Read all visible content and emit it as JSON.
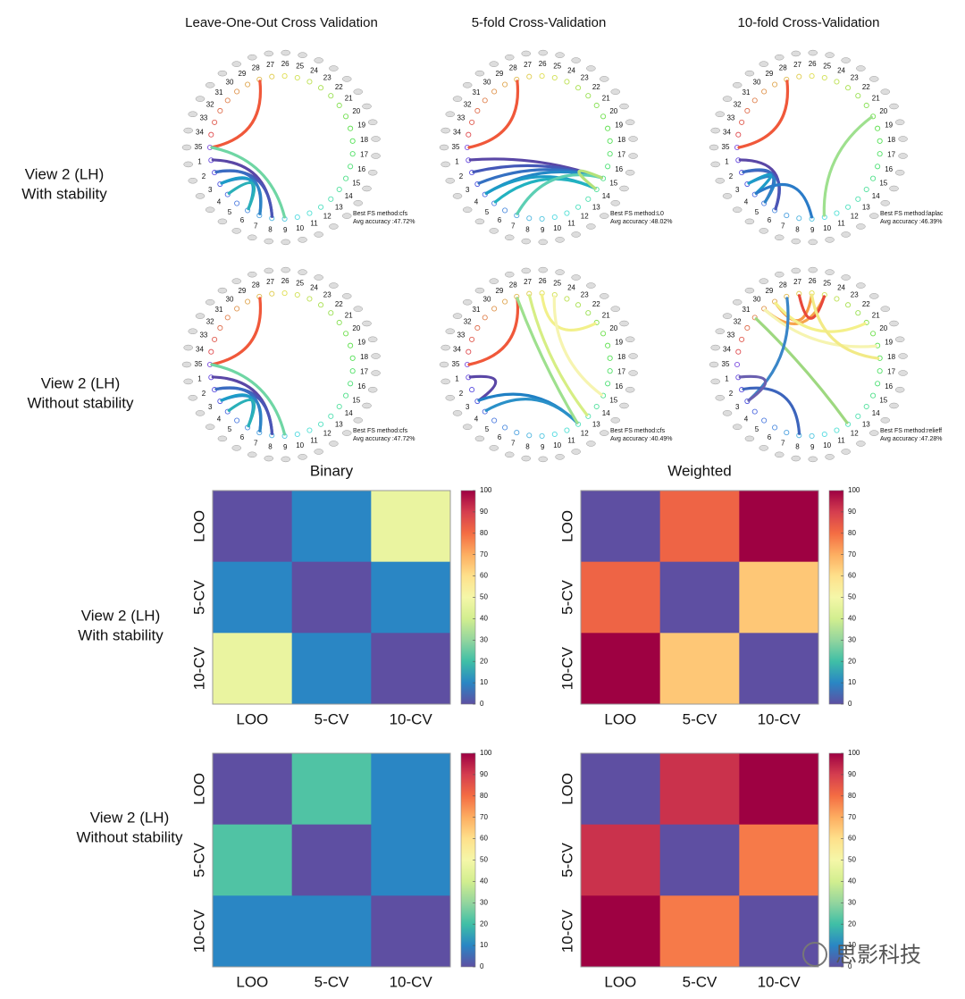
{
  "connectome": {
    "columns": [
      "Leave-One-Out Cross Validation",
      "5-fold Cross-Validation",
      "10-fold Cross-Validation"
    ],
    "row_labels": [
      [
        "View 2 (LH)",
        "With stability"
      ],
      [
        "View 2 (LH)",
        "Without stability"
      ]
    ],
    "nodes": [
      35,
      1,
      2,
      3,
      4,
      5,
      6,
      7,
      8,
      9,
      10,
      11,
      12,
      13,
      14,
      15,
      16,
      17,
      18,
      19,
      20,
      21,
      22,
      23,
      24,
      25,
      26,
      27,
      28,
      29,
      30,
      31,
      32,
      33,
      34
    ],
    "panels": [
      {
        "method": "Best FS method:cfs",
        "accuracy": "Avg accuracy :47.72%",
        "edges": [
          {
            "from": 35,
            "to": 28,
            "color": "#f0583a"
          },
          {
            "from": 35,
            "to": 9,
            "color": "#6fd6a4"
          },
          {
            "from": 1,
            "to": 8,
            "color": "#5a47a6"
          },
          {
            "from": 2,
            "to": 8,
            "color": "#4a56b6"
          },
          {
            "from": 2,
            "to": 7,
            "color": "#3a6cc2"
          },
          {
            "from": 3,
            "to": 7,
            "color": "#2d84c6"
          },
          {
            "from": 3,
            "to": 6,
            "color": "#1d9cc8"
          },
          {
            "from": 4,
            "to": 6,
            "color": "#2ab0b8"
          }
        ]
      },
      {
        "method": "Best FS method:L0",
        "accuracy": "Avg accuracy :48.02%",
        "edges": [
          {
            "from": 35,
            "to": 28,
            "color": "#f0583a"
          },
          {
            "from": 1,
            "to": 15,
            "color": "#5a47a6"
          },
          {
            "from": 2,
            "to": 15,
            "color": "#4458b8"
          },
          {
            "from": 3,
            "to": 15,
            "color": "#3470c2"
          },
          {
            "from": 4,
            "to": 15,
            "color": "#2488c6"
          },
          {
            "from": 4,
            "to": 14,
            "color": "#1c9cc6"
          },
          {
            "from": 5,
            "to": 14,
            "color": "#22b2c0"
          },
          {
            "from": 7,
            "to": 15,
            "color": "#5ccfb4"
          },
          {
            "from": 14,
            "to": 15,
            "color": "#b4e27a"
          }
        ]
      },
      {
        "method": "Best FS method:laplac",
        "accuracy": "Avg accuracy :46.39%",
        "edges": [
          {
            "from": 35,
            "to": 28,
            "color": "#f0583a"
          },
          {
            "from": 1,
            "to": 6,
            "color": "#5a47a6"
          },
          {
            "from": 2,
            "to": 6,
            "color": "#4a56b6"
          },
          {
            "from": 2,
            "to": 5,
            "color": "#3a6cc2"
          },
          {
            "from": 3,
            "to": 5,
            "color": "#2d84c6"
          },
          {
            "from": 3,
            "to": 4,
            "color": "#1d9cc8"
          },
          {
            "from": 4,
            "to": 9,
            "color": "#2a7bc8"
          },
          {
            "from": 10,
            "to": 20,
            "color": "#9ee08e"
          }
        ]
      },
      {
        "method": "Best FS method:cfs",
        "accuracy": "Avg accuracy :47.72%",
        "edges": [
          {
            "from": 35,
            "to": 28,
            "color": "#f0583a"
          },
          {
            "from": 35,
            "to": 9,
            "color": "#6fd6a4"
          },
          {
            "from": 1,
            "to": 8,
            "color": "#5a47a6"
          },
          {
            "from": 2,
            "to": 8,
            "color": "#4a56b6"
          },
          {
            "from": 2,
            "to": 7,
            "color": "#3a6cc2"
          },
          {
            "from": 3,
            "to": 7,
            "color": "#2d84c6"
          },
          {
            "from": 3,
            "to": 6,
            "color": "#1d9cc8"
          },
          {
            "from": 4,
            "to": 6,
            "color": "#2ab0b8"
          }
        ]
      },
      {
        "method": "Best FS method:cfs",
        "accuracy": "Avg accuracy :40.49%",
        "edges": [
          {
            "from": 35,
            "to": 28,
            "color": "#f0583a"
          },
          {
            "from": 1,
            "to": 3,
            "color": "#5a47a6"
          },
          {
            "from": 3,
            "to": 12,
            "color": "#1f80c4"
          },
          {
            "from": 4,
            "to": 12,
            "color": "#2a90c8"
          },
          {
            "from": 28,
            "to": 12,
            "color": "#9ee08e"
          },
          {
            "from": 27,
            "to": 13,
            "color": "#d6ee84"
          },
          {
            "from": 26,
            "to": 21,
            "color": "#f2f08a"
          },
          {
            "from": 25,
            "to": 15,
            "color": "#f6f4b0"
          }
        ]
      },
      {
        "method": "Best FS method:relieff",
        "accuracy": "Avg accuracy :47.28%",
        "edges": [
          {
            "from": 29,
            "to": 26,
            "color": "#f59a44"
          },
          {
            "from": 30,
            "to": 25,
            "color": "#f6a44c"
          },
          {
            "from": 27,
            "to": 25,
            "color": "#e8483a"
          },
          {
            "from": 29,
            "to": 21,
            "color": "#f4f08a"
          },
          {
            "from": 30,
            "to": 19,
            "color": "#f6f4b0"
          },
          {
            "from": 31,
            "to": 12,
            "color": "#9ed880"
          },
          {
            "from": 28,
            "to": 3,
            "color": "#3a86c8"
          },
          {
            "from": 2,
            "to": 8,
            "color": "#3c64bc"
          },
          {
            "from": 1,
            "to": 3,
            "color": "#6a60b0"
          },
          {
            "from": 26,
            "to": 18,
            "color": "#f2ea86"
          }
        ]
      }
    ]
  },
  "heatmap_rows": [
    [
      "View 2 (LH)",
      "With stability"
    ],
    [
      "View 2 (LH)",
      "Without stability"
    ]
  ],
  "chart_data": [
    {
      "type": "heatmap",
      "title": "Binary",
      "x_categories": [
        "LOO",
        "5-CV",
        "10-CV"
      ],
      "y_categories": [
        "LOO",
        "5-CV",
        "10-CV"
      ],
      "values": [
        [
          0,
          10,
          47
        ],
        [
          10,
          0,
          10
        ],
        [
          47,
          10,
          0
        ]
      ],
      "zlim": [
        0,
        100
      ],
      "zticks": [
        0,
        10,
        20,
        30,
        40,
        50,
        60,
        70,
        80,
        90,
        100
      ]
    },
    {
      "type": "heatmap",
      "title": "Weighted",
      "x_categories": [
        "LOO",
        "5-CV",
        "10-CV"
      ],
      "y_categories": [
        "LOO",
        "5-CV",
        "10-CV"
      ],
      "values": [
        [
          0,
          82,
          100
        ],
        [
          82,
          0,
          65
        ],
        [
          100,
          65,
          0
        ]
      ],
      "zlim": [
        0,
        100
      ],
      "zticks": [
        0,
        10,
        20,
        30,
        40,
        50,
        60,
        70,
        80,
        90,
        100
      ]
    },
    {
      "type": "heatmap",
      "x_categories": [
        "LOO",
        "5-CV",
        "10-CV"
      ],
      "y_categories": [
        "LOO",
        "5-CV",
        "10-CV"
      ],
      "values": [
        [
          0,
          22,
          10
        ],
        [
          22,
          0,
          10
        ],
        [
          10,
          10,
          0
        ]
      ],
      "zlim": [
        0,
        100
      ],
      "zticks": [
        0,
        10,
        20,
        30,
        40,
        50,
        60,
        70,
        80,
        90,
        100
      ]
    },
    {
      "type": "heatmap",
      "x_categories": [
        "LOO",
        "5-CV",
        "10-CV"
      ],
      "y_categories": [
        "LOO",
        "5-CV",
        "10-CV"
      ],
      "values": [
        [
          0,
          92,
          100
        ],
        [
          92,
          0,
          78
        ],
        [
          100,
          78,
          0
        ]
      ],
      "zlim": [
        0,
        100
      ],
      "zticks": [
        0,
        10,
        20,
        30,
        40,
        50,
        60,
        70,
        80,
        90,
        100
      ]
    }
  ],
  "watermark": "思影科技"
}
